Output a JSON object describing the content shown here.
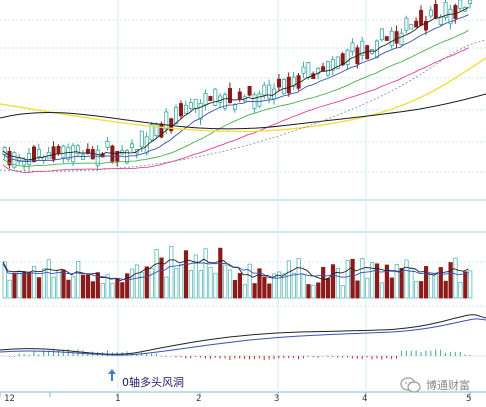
{
  "annotation": {
    "text": "0轴多头风洞",
    "arrow_icon": "up-arrow-icon"
  },
  "watermark": {
    "text": "博通财富",
    "icon": "wechat-logo-icon"
  },
  "x_ticks": [
    "12",
    "1",
    "2",
    "3",
    "4",
    "5"
  ],
  "colors": {
    "up": "#8fd4d0",
    "down": "#8b1a1a",
    "ma_short": "#222222",
    "ma_blue": "#3a4fb8",
    "ma_green": "#4bb04b",
    "ma_magenta": "#e0409a",
    "ma_yellow": "#f0e040",
    "ma_long": "#1a1a1a",
    "grid": "#cfe8ec"
  },
  "chart_data": {
    "type": "candlestick",
    "x_ticks": [
      "12",
      "1",
      "2",
      "3",
      "4",
      "5"
    ],
    "price_trend": "rising",
    "volume_trend": "mixed",
    "macd_zero_axis": true
  }
}
